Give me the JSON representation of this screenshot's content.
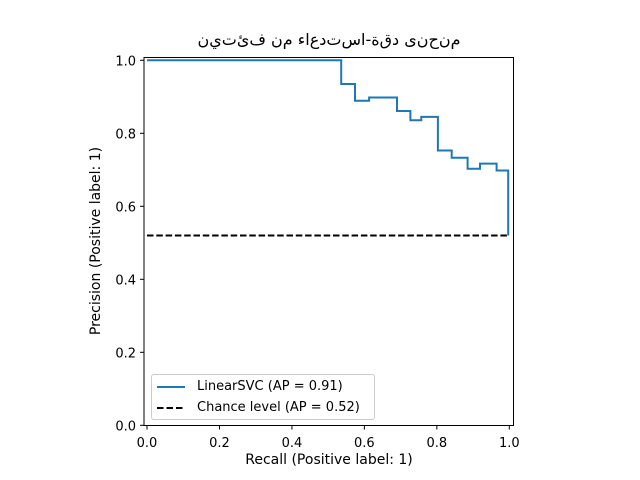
{
  "figure": {
    "title_display": "م‌ن‌ح‌ن‌ى د‌ق‌ة-ا‌س‌ت‌د‌ع‌ا‌ء م‌ن ف‌ئ‌ت‌ي‌ن",
    "background": "#ffffff"
  },
  "legend": {
    "entries": [
      {
        "label": "LinearSVC (AP = 0.91)",
        "style": "solid",
        "color": "#1f77b4"
      },
      {
        "label": "Chance level (AP = 0.52)",
        "style": "dashed",
        "color": "#000000"
      }
    ]
  },
  "chart_data": {
    "type": "line",
    "title": "منحنى دقة-استدعاء من فئتين",
    "xlabel": "Recall (Positive label: 1)",
    "ylabel": "Precision (Positive label: 1)",
    "x_ticks": [
      0.0,
      0.2,
      0.4,
      0.6,
      0.8,
      1.0
    ],
    "y_ticks": [
      0.0,
      0.2,
      0.4,
      0.6,
      0.8,
      1.0
    ],
    "xlim": [
      -0.008,
      1.012
    ],
    "ylim": [
      -0.001,
      1.006
    ],
    "grid": false,
    "legend_position": "lower left",
    "series": [
      {
        "name": "LinearSVC (AP = 0.91)",
        "kind": "step",
        "color": "#1f77b4",
        "linestyle": "solid",
        "points": [
          [
            0.0,
            1.0
          ],
          [
            0.536,
            1.0
          ],
          [
            0.536,
            0.935
          ],
          [
            0.574,
            0.935
          ],
          [
            0.574,
            0.889
          ],
          [
            0.613,
            0.889
          ],
          [
            0.613,
            0.898
          ],
          [
            0.69,
            0.898
          ],
          [
            0.69,
            0.861
          ],
          [
            0.727,
            0.861
          ],
          [
            0.727,
            0.836
          ],
          [
            0.757,
            0.836
          ],
          [
            0.757,
            0.845
          ],
          [
            0.803,
            0.845
          ],
          [
            0.803,
            0.753
          ],
          [
            0.841,
            0.753
          ],
          [
            0.841,
            0.733
          ],
          [
            0.885,
            0.733
          ],
          [
            0.885,
            0.703
          ],
          [
            0.919,
            0.703
          ],
          [
            0.919,
            0.717
          ],
          [
            0.965,
            0.717
          ],
          [
            0.965,
            0.698
          ],
          [
            0.997,
            0.698
          ],
          [
            0.997,
            0.52
          ]
        ]
      },
      {
        "name": "Chance level (AP = 0.52)",
        "kind": "hline",
        "color": "#000000",
        "linestyle": "dashed",
        "y": 0.52,
        "x_range": [
          0.0,
          1.0
        ]
      }
    ]
  }
}
